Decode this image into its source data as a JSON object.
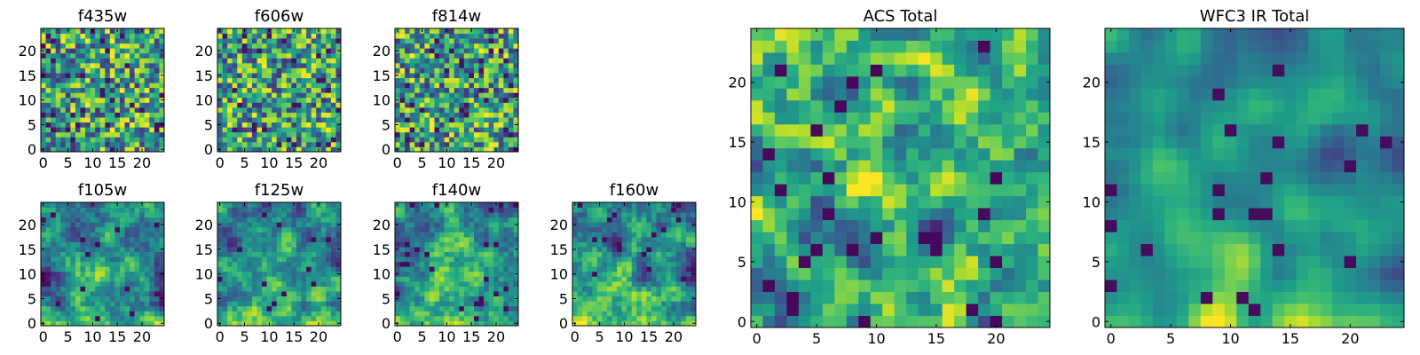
{
  "chart_data": [
    {
      "type": "heatmap",
      "title": "f435w",
      "grid": false,
      "xlim": [
        -0.5,
        24.5
      ],
      "ylim": [
        -0.5,
        24.5
      ],
      "origin": "lower",
      "xticks": [
        0,
        5,
        10,
        15,
        20
      ],
      "yticks": [
        0,
        5,
        10,
        15,
        20
      ],
      "grid_size": [
        25,
        25
      ],
      "colormap": "viridis",
      "texture": "noise"
    },
    {
      "type": "heatmap",
      "title": "f606w",
      "grid": false,
      "xlim": [
        -0.5,
        24.5
      ],
      "ylim": [
        -0.5,
        24.5
      ],
      "origin": "lower",
      "xticks": [
        0,
        5,
        10,
        15,
        20
      ],
      "yticks": [
        0,
        5,
        10,
        15,
        20
      ],
      "grid_size": [
        25,
        25
      ],
      "colormap": "viridis",
      "texture": "noise"
    },
    {
      "type": "heatmap",
      "title": "f814w",
      "grid": false,
      "xlim": [
        -0.5,
        24.5
      ],
      "ylim": [
        -0.5,
        24.5
      ],
      "origin": "lower",
      "xticks": [
        0,
        5,
        10,
        15,
        20
      ],
      "yticks": [
        0,
        5,
        10,
        15,
        20
      ],
      "grid_size": [
        25,
        25
      ],
      "colormap": "viridis",
      "texture": "noise"
    },
    {
      "type": "heatmap",
      "title": "f105w",
      "grid": false,
      "xlim": [
        -0.5,
        24.5
      ],
      "ylim": [
        -0.5,
        24.5
      ],
      "origin": "lower",
      "xticks": [
        0,
        5,
        10,
        15,
        20
      ],
      "yticks": [
        0,
        5,
        10,
        15,
        20
      ],
      "grid_size": [
        25,
        25
      ],
      "colormap": "viridis",
      "texture": "smooth"
    },
    {
      "type": "heatmap",
      "title": "f125w",
      "grid": false,
      "xlim": [
        -0.5,
        24.5
      ],
      "ylim": [
        -0.5,
        24.5
      ],
      "origin": "lower",
      "xticks": [
        0,
        5,
        10,
        15,
        20
      ],
      "yticks": [
        0,
        5,
        10,
        15,
        20
      ],
      "grid_size": [
        25,
        25
      ],
      "colormap": "viridis",
      "texture": "smooth"
    },
    {
      "type": "heatmap",
      "title": "f140w",
      "grid": false,
      "xlim": [
        -0.5,
        24.5
      ],
      "ylim": [
        -0.5,
        24.5
      ],
      "origin": "lower",
      "xticks": [
        0,
        5,
        10,
        15,
        20
      ],
      "yticks": [
        0,
        5,
        10,
        15,
        20
      ],
      "grid_size": [
        25,
        25
      ],
      "colormap": "viridis",
      "texture": "smooth"
    },
    {
      "type": "heatmap",
      "title": "f160w",
      "grid": false,
      "xlim": [
        -0.5,
        24.5
      ],
      "ylim": [
        -0.5,
        24.5
      ],
      "origin": "lower",
      "xticks": [
        0,
        5,
        10,
        15,
        20
      ],
      "yticks": [
        0,
        5,
        10,
        15,
        20
      ],
      "grid_size": [
        25,
        25
      ],
      "colormap": "viridis",
      "texture": "smooth"
    },
    {
      "type": "heatmap",
      "title": "ACS Total",
      "grid": false,
      "xlim": [
        -0.5,
        24.5
      ],
      "ylim": [
        -0.5,
        24.5
      ],
      "origin": "lower",
      "xticks": [
        0,
        5,
        10,
        15,
        20
      ],
      "yticks": [
        0,
        5,
        10,
        15,
        20
      ],
      "grid_size": [
        25,
        25
      ],
      "colormap": "viridis",
      "texture": "acs"
    },
    {
      "type": "heatmap",
      "title": "WFC3 IR Total",
      "grid": false,
      "xlim": [
        -0.5,
        24.5
      ],
      "ylim": [
        -0.5,
        24.5
      ],
      "origin": "lower",
      "xticks": [
        0,
        5,
        10,
        15,
        20
      ],
      "yticks": [
        0,
        5,
        10,
        15,
        20
      ],
      "grid_size": [
        25,
        25
      ],
      "colormap": "viridis",
      "texture": "ir"
    }
  ]
}
